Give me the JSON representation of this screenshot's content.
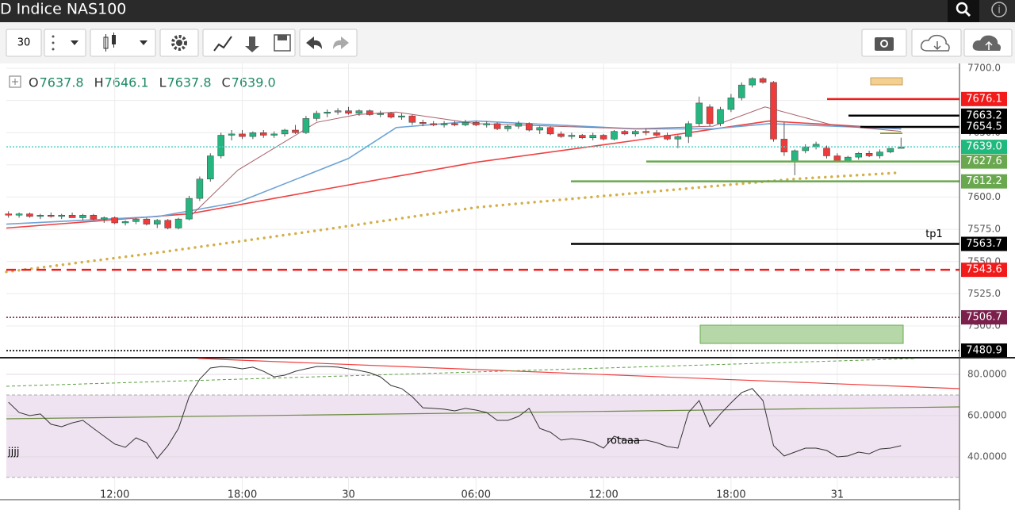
{
  "header": {
    "title": "D Indice NAS100"
  },
  "toolbar": {
    "interval": "30"
  },
  "ohlc": [
    {
      "label": "O",
      "value": "7637.8"
    },
    {
      "label": "H",
      "value": "7646.1"
    },
    {
      "label": "L",
      "value": "7637.8"
    },
    {
      "label": "C",
      "value": "7639.0"
    }
  ],
  "chart_data": [
    {
      "type": "candlestick",
      "up_color": "#26b47f",
      "down_color": "#ef3b3b",
      "open": [
        7587,
        7586,
        7587,
        7585,
        7586,
        7585,
        7586,
        7584,
        7586,
        7583,
        7584,
        7580,
        7581,
        7583,
        7579,
        7582,
        7576,
        7583,
        7599,
        7614,
        7632,
        7648,
        7649,
        7647,
        7650,
        7648,
        7649,
        7652,
        7650,
        7661,
        7665,
        7666,
        7667,
        7665,
        7667,
        7664,
        7665,
        7662,
        7663,
        7658,
        7657,
        7656,
        7657,
        7656,
        7658,
        7656,
        7657,
        7653,
        7655,
        7657,
        7652,
        7654,
        7649,
        7647,
        7648,
        7646,
        7648,
        7645,
        7651,
        7649,
        7651,
        7650,
        7648,
        7645,
        7647,
        7657,
        7670,
        7657,
        7668,
        7677,
        7687,
        7692,
        7689,
        7645,
        7628,
        7636,
        7639,
        7638,
        7632,
        7628,
        7631,
        7634,
        7632,
        7635,
        7637.8
      ],
      "high": [
        7589,
        7588,
        7588,
        7587,
        7588,
        7587,
        7588,
        7587,
        7587,
        7585,
        7585,
        7582,
        7584,
        7584,
        7583,
        7583,
        7584,
        7601,
        7616,
        7634,
        7650,
        7652,
        7652,
        7651,
        7652,
        7651,
        7653,
        7656,
        7663,
        7667,
        7668,
        7669,
        7670,
        7668,
        7668,
        7667,
        7666,
        7665,
        7664,
        7660,
        7659,
        7659,
        7659,
        7660,
        7659,
        7659,
        7658,
        7656,
        7659,
        7658,
        7655,
        7655,
        7651,
        7650,
        7649,
        7650,
        7649,
        7652,
        7652,
        7652,
        7653,
        7652,
        7650,
        7648,
        7659,
        7678,
        7672,
        7670,
        7680,
        7689,
        7693,
        7693,
        7690,
        7658,
        7637,
        7641,
        7643,
        7640,
        7634,
        7632,
        7635,
        7636,
        7637,
        7638,
        7646.1
      ],
      "low": [
        7584,
        7584,
        7584,
        7583,
        7584,
        7583,
        7584,
        7582,
        7582,
        7580,
        7579,
        7578,
        7579,
        7578,
        7576,
        7575,
        7575,
        7582,
        7597,
        7612,
        7630,
        7644,
        7645,
        7645,
        7646,
        7646,
        7647,
        7649,
        7649,
        7659,
        7662,
        7664,
        7664,
        7663,
        7663,
        7662,
        7661,
        7660,
        7656,
        7655,
        7655,
        7654,
        7655,
        7655,
        7655,
        7654,
        7652,
        7651,
        7653,
        7651,
        7649,
        7648,
        7646,
        7645,
        7645,
        7644,
        7644,
        7644,
        7648,
        7647,
        7648,
        7647,
        7644,
        7638,
        7642,
        7655,
        7655,
        7655,
        7666,
        7675,
        7685,
        7688,
        7643,
        7632,
        7617,
        7634,
        7637,
        7630,
        7627,
        7627,
        7629,
        7631,
        7630,
        7634,
        7637.8
      ],
      "close": [
        7586,
        7587,
        7585,
        7586,
        7585,
        7586,
        7584,
        7586,
        7583,
        7584,
        7580,
        7581,
        7583,
        7579,
        7582,
        7576,
        7583,
        7599,
        7614,
        7632,
        7648,
        7649,
        7647,
        7650,
        7648,
        7649,
        7652,
        7650,
        7661,
        7665,
        7666,
        7667,
        7665,
        7667,
        7664,
        7665,
        7662,
        7663,
        7658,
        7657,
        7656,
        7657,
        7656,
        7658,
        7656,
        7657,
        7653,
        7655,
        7657,
        7652,
        7654,
        7649,
        7647,
        7648,
        7646,
        7648,
        7645,
        7651,
        7649,
        7651,
        7650,
        7648,
        7645,
        7647,
        7657,
        7673,
        7657,
        7668,
        7677,
        7687,
        7692,
        7689,
        7645,
        7635,
        7636,
        7639,
        7641,
        7632,
        7628,
        7631,
        7634,
        7632,
        7635,
        7637.8,
        7639
      ],
      "xlim": [
        -0.2,
        89.5
      ],
      "xticks": [
        {
          "value": 10,
          "label": "12:00"
        },
        {
          "value": 22,
          "label": "18:00"
        },
        {
          "value": 32,
          "label": "30"
        },
        {
          "value": 44,
          "label": "06:00"
        },
        {
          "value": 56,
          "label": "12:00"
        },
        {
          "value": 68,
          "label": "18:00"
        },
        {
          "value": 78,
          "label": "31"
        }
      ],
      "ylim": [
        7476,
        7703.7
      ],
      "yticks": [
        {
          "value": 7500,
          "label": "7500.0"
        },
        {
          "value": 7525,
          "label": "7525.0"
        },
        {
          "value": 7550,
          "label": "7550.0"
        },
        {
          "value": 7575,
          "label": "7575.0"
        },
        {
          "value": 7600,
          "label": "7600.0"
        },
        {
          "value": 7625,
          "label": "7625.0"
        },
        {
          "value": 7650,
          "label": "7650.0"
        },
        {
          "value": 7675,
          "label": "7675.0"
        },
        {
          "value": 7700,
          "label": "7700.0"
        }
      ],
      "grid": true,
      "lines": [
        {
          "color": "#f04040",
          "style": "solid",
          "x": [
            -0.2,
            17,
            29,
            44,
            59,
            71.6,
            84
          ],
          "values": [
            7576,
            7587,
            7605,
            7627,
            7644,
            7659,
            7653
          ]
        },
        {
          "color": "#6fa3d6",
          "style": "solid",
          "x": [
            -0.2,
            14.1,
            21.6,
            32,
            36.5,
            44,
            58.9,
            66.3,
            71.6,
            84
          ],
          "values": [
            7579,
            7585,
            7596,
            7630,
            7654,
            7659,
            7653,
            7653,
            7657,
            7653
          ]
        },
        {
          "color": "#a8606a",
          "style": "thin",
          "x": [
            17.1,
            21.6,
            29,
            32.8,
            36.5,
            44,
            58.9,
            66.3,
            71.2,
            77.5,
            84
          ],
          "values": [
            7585,
            7621,
            7658,
            7664,
            7666,
            7657,
            7653,
            7655,
            7670,
            7656,
            7651
          ]
        },
        {
          "color": "#d4b04a",
          "style": "dots",
          "x": [
            -0.2,
            14.1,
            29,
            44,
            58.9,
            73.8,
            84
          ],
          "values": [
            7542,
            7557,
            7574,
            7592,
            7603,
            7614,
            7619
          ]
        }
      ],
      "levels": [
        {
          "price": 7676.1,
          "color": "#f21b1b",
          "style": "solid"
        },
        {
          "price": 7663.2,
          "color": "#000000",
          "style": "solid"
        },
        {
          "price": 7654.5,
          "color": "#000000",
          "style": "solid"
        },
        {
          "price": {
            "value": 7639,
            "label": "7639.0"
          },
          "color": "#1fb97d",
          "line_color": "#4dd0c8",
          "style": "dotted"
        },
        {
          "price": 7627.6,
          "color": "#6aa84f",
          "style": "solid"
        },
        {
          "price": 7612.2,
          "color": "#6aa84f",
          "style": "solid"
        },
        {
          "price": 7563.7,
          "color": "#000000",
          "style": "solid",
          "label": "tp1"
        },
        {
          "price": 7543.6,
          "color": "#f21b1b",
          "style": "dashed"
        },
        {
          "price": 7506.7,
          "color": "#7b1f4b",
          "style": "dotted"
        },
        {
          "price": 7480.9,
          "color": "#000000",
          "style": "dotted"
        }
      ]
    },
    {
      "type": "line",
      "color": "#333333",
      "values": [
        66.5,
        61.5,
        60,
        60.8,
        55.8,
        54.6,
        56.5,
        57.7,
        53.8,
        50,
        46.2,
        44.6,
        49.2,
        46.9,
        39.2,
        45.4,
        53.8,
        69.2,
        77.7,
        83.1,
        83.8,
        83.5,
        82.7,
        83.5,
        81.5,
        78.8,
        79.6,
        81.5,
        82.7,
        83.8,
        83.8,
        83.5,
        82.7,
        81.9,
        80.8,
        78.8,
        74.6,
        73.1,
        69.2,
        63.8,
        63.5,
        63.1,
        62.3,
        63.5,
        62.7,
        61.5,
        57.7,
        57.7,
        59.6,
        63.5,
        53.8,
        51.9,
        48.1,
        48.8,
        48.1,
        46.9,
        44.2,
        50,
        48.1,
        47.7,
        48.1,
        46.9,
        45,
        44.2,
        61.5,
        67.3,
        54.6,
        60.8,
        66.2,
        71.2,
        73.1,
        67.3,
        45.4,
        40.4,
        42.3,
        44.2,
        44.2,
        43.1,
        40,
        40.4,
        42.3,
        41.5,
        43.8,
        44.2,
        45.4
      ],
      "xlim": [
        -0.2,
        89.5
      ],
      "ylim": [
        19.2,
        87.7
      ],
      "yticks": [
        {
          "value": 40,
          "label": "40.0000"
        },
        {
          "value": 60,
          "label": "60.0000"
        },
        {
          "value": 80,
          "label": "80.0000"
        }
      ],
      "band": [
        30,
        70
      ],
      "band_color": "#efe3f1",
      "annotations": [
        "jjjj",
        "rotaaa"
      ]
    }
  ]
}
